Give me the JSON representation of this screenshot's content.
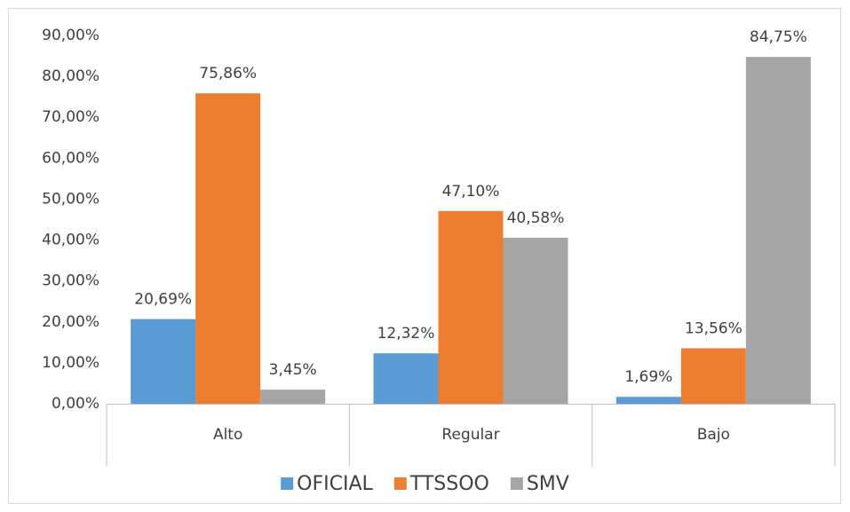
{
  "chart_data": {
    "type": "bar",
    "categories": [
      "Alto",
      "Regular",
      "Bajo"
    ],
    "series": [
      {
        "name": "OFICIAL",
        "color": "#5b9bd5",
        "values": [
          20.69,
          12.32,
          1.69
        ],
        "value_labels": [
          "20,69%",
          "12,32%",
          "1,69%"
        ]
      },
      {
        "name": "TTSSOO",
        "color": "#ed7d31",
        "values": [
          75.86,
          47.1,
          13.56
        ],
        "value_labels": [
          "75,86%",
          "47,10%",
          "13,56%"
        ]
      },
      {
        "name": "SMV",
        "color": "#a5a5a5",
        "values": [
          3.45,
          40.58,
          84.75
        ],
        "value_labels": [
          "3,45%",
          "40,58%",
          "84,75%"
        ]
      }
    ],
    "ylim": [
      0,
      90
    ],
    "yticks": [
      {
        "value": 0,
        "label": "0,00%"
      },
      {
        "value": 10,
        "label": "10,00%"
      },
      {
        "value": 20,
        "label": "20,00%"
      },
      {
        "value": 30,
        "label": "30,00%"
      },
      {
        "value": 40,
        "label": "40,00%"
      },
      {
        "value": 50,
        "label": "50,00%"
      },
      {
        "value": 60,
        "label": "60,00%"
      },
      {
        "value": 70,
        "label": "70,00%"
      },
      {
        "value": 80,
        "label": "80,00%"
      },
      {
        "value": 90,
        "label": "90,00%"
      }
    ],
    "grid": false,
    "legend": "bottom"
  }
}
